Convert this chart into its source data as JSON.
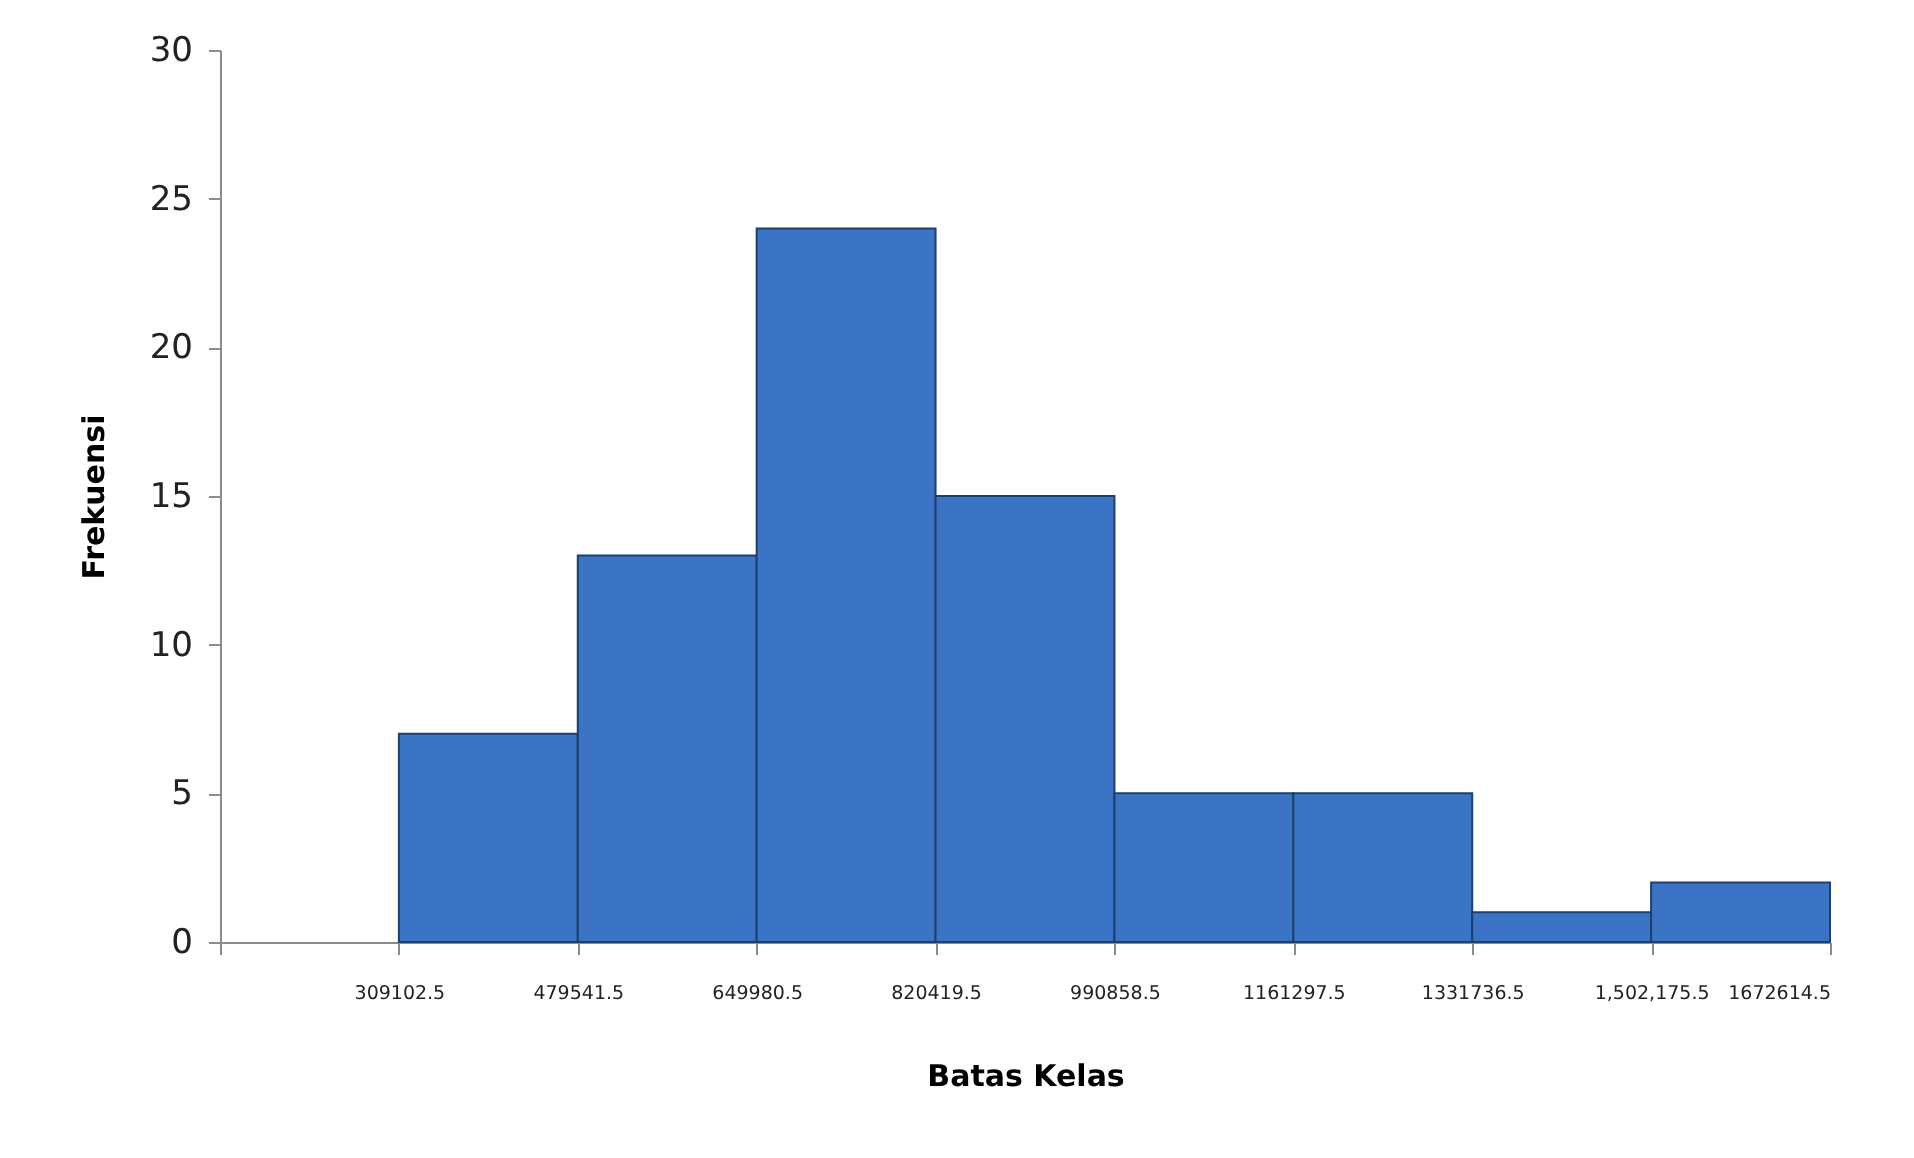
{
  "chart_data": {
    "type": "histogram",
    "xlabel": "Batas Kelas",
    "ylabel": "Frekuensi",
    "bins": [
      309102.5,
      479541.5,
      649980.5,
      820419.5,
      990858.5,
      1161297.5,
      1331736.5,
      1502175.5,
      1672614.5
    ],
    "values": [
      7,
      13,
      24,
      15,
      5,
      5,
      1,
      2
    ],
    "color": "#3b74c4",
    "xlim": [
      138663.5,
      1672614.5
    ],
    "xticks": [
      {
        "value": 138663.5,
        "label": null
      },
      {
        "value": 309102.5,
        "label": "309102.5"
      },
      {
        "value": 479541.5,
        "label": "479541.5"
      },
      {
        "value": 649980.5,
        "label": "649980.5"
      },
      {
        "value": 820419.5,
        "label": "820419.5"
      },
      {
        "value": 990858.5,
        "label": "990858.5"
      },
      {
        "value": 1161297.5,
        "label": "1161297.5"
      },
      {
        "value": 1331736.5,
        "label": "1331736.5"
      },
      {
        "value": 1502175.5,
        "label": "1,502,175.5"
      },
      {
        "value": 1672614.5,
        "label": "1672614.5"
      }
    ],
    "ylim": [
      0,
      30
    ],
    "yticks": [
      0,
      5,
      10,
      15,
      20,
      25,
      30
    ],
    "grid": false
  }
}
